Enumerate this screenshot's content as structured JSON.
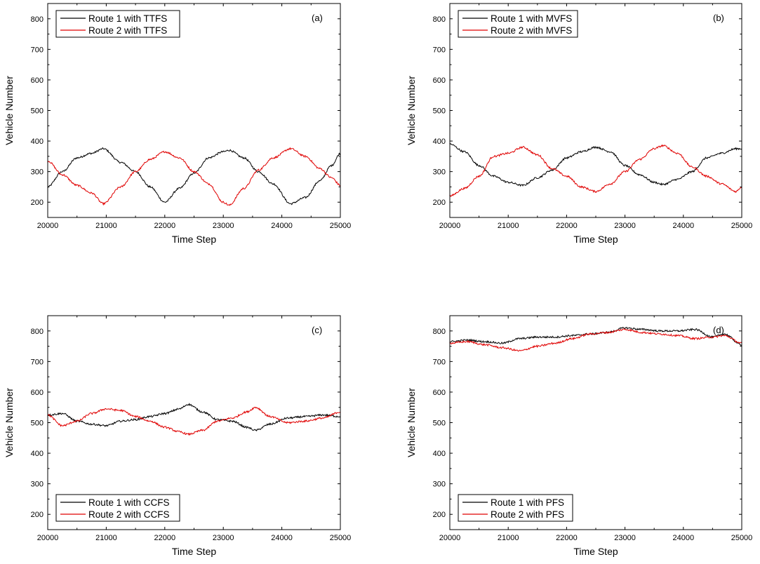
{
  "figure": {
    "background": "#ffffff",
    "series_colors": [
      "#000000",
      "#e00000"
    ]
  },
  "chart_data": [
    {
      "type": "line",
      "panel_label": "(a)",
      "xlabel": "Time Step",
      "ylabel": "Vehicle Number",
      "xlim": [
        20000,
        25000
      ],
      "ylim": [
        150,
        850
      ],
      "xticks": [
        20000,
        21000,
        22000,
        23000,
        24000,
        25000
      ],
      "yticks": [
        200,
        300,
        400,
        500,
        600,
        700,
        800
      ],
      "grid": false,
      "legend_position": "top-left",
      "x": [
        20000,
        20250,
        20500,
        20750,
        20950,
        21250,
        21500,
        21750,
        22000,
        22250,
        22500,
        22750,
        23000,
        23100,
        23350,
        23600,
        23850,
        24150,
        24400,
        24650,
        24850,
        25000
      ],
      "series": [
        {
          "name": "Route 1 with TTFS",
          "color": "#000000",
          "values": [
            250,
            300,
            345,
            360,
            375,
            330,
            300,
            250,
            200,
            245,
            295,
            345,
            365,
            370,
            345,
            300,
            260,
            195,
            215,
            270,
            320,
            360
          ]
        },
        {
          "name": "Route 2 with TTFS",
          "color": "#e00000",
          "values": [
            335,
            290,
            255,
            230,
            195,
            250,
            300,
            340,
            365,
            345,
            300,
            260,
            200,
            190,
            245,
            305,
            345,
            375,
            350,
            310,
            280,
            255
          ]
        }
      ]
    },
    {
      "type": "line",
      "panel_label": "(b)",
      "xlabel": "Time Step",
      "ylabel": "Vehicle Number",
      "xlim": [
        20000,
        25000
      ],
      "ylim": [
        150,
        850
      ],
      "xticks": [
        20000,
        21000,
        22000,
        23000,
        24000,
        25000
      ],
      "yticks": [
        200,
        300,
        400,
        500,
        600,
        700,
        800
      ],
      "grid": false,
      "legend_position": "top-left",
      "x": [
        20000,
        20250,
        20500,
        20750,
        21000,
        21250,
        21500,
        21750,
        22000,
        22250,
        22500,
        22750,
        23000,
        23250,
        23500,
        23650,
        23900,
        24150,
        24400,
        24650,
        24900,
        25000
      ],
      "series": [
        {
          "name": "Route 1 with MVFS",
          "color": "#000000",
          "values": [
            390,
            365,
            320,
            285,
            265,
            255,
            280,
            305,
            345,
            365,
            380,
            365,
            320,
            290,
            265,
            258,
            275,
            300,
            345,
            360,
            375,
            375
          ]
        },
        {
          "name": "Route 2 with MVFS",
          "color": "#e00000",
          "values": [
            220,
            245,
            285,
            350,
            360,
            380,
            355,
            310,
            285,
            250,
            235,
            260,
            300,
            340,
            375,
            385,
            360,
            315,
            285,
            260,
            235,
            250
          ]
        }
      ]
    },
    {
      "type": "line",
      "panel_label": "(c)",
      "xlabel": "Time Step",
      "ylabel": "Vehicle Number",
      "xlim": [
        20000,
        25000
      ],
      "ylim": [
        150,
        850
      ],
      "xticks": [
        20000,
        21000,
        22000,
        23000,
        24000,
        25000
      ],
      "yticks": [
        200,
        300,
        400,
        500,
        600,
        700,
        800
      ],
      "grid": false,
      "legend_position": "bottom-left",
      "x": [
        20000,
        20250,
        20500,
        20750,
        21000,
        21250,
        21500,
        21750,
        22000,
        22250,
        22400,
        22650,
        22900,
        23150,
        23400,
        23550,
        23800,
        24100,
        24400,
        24700,
        25000
      ],
      "series": [
        {
          "name": "Route 1 with CCFS",
          "color": "#000000",
          "values": [
            525,
            530,
            505,
            495,
            490,
            505,
            510,
            520,
            530,
            545,
            560,
            535,
            510,
            505,
            485,
            475,
            495,
            515,
            520,
            525,
            520
          ]
        },
        {
          "name": "Route 2 with CCFS",
          "color": "#e00000",
          "values": [
            525,
            490,
            505,
            530,
            545,
            540,
            520,
            505,
            485,
            470,
            462,
            475,
            505,
            515,
            535,
            550,
            520,
            500,
            505,
            515,
            535
          ]
        }
      ]
    },
    {
      "type": "line",
      "panel_label": "(d)",
      "xlabel": "Time Step",
      "ylabel": "Vehicle Number",
      "xlim": [
        20000,
        25000
      ],
      "ylim": [
        150,
        850
      ],
      "xticks": [
        20000,
        21000,
        22000,
        23000,
        24000,
        25000
      ],
      "yticks": [
        200,
        300,
        400,
        500,
        600,
        700,
        800
      ],
      "grid": false,
      "legend_position": "bottom-left",
      "x": [
        20000,
        20300,
        20600,
        20900,
        21200,
        21500,
        21800,
        22100,
        22400,
        22700,
        23000,
        23300,
        23600,
        23900,
        24200,
        24500,
        24700,
        25000
      ],
      "series": [
        {
          "name": "Route 1 with PFS",
          "color": "#000000",
          "values": [
            765,
            770,
            765,
            760,
            775,
            780,
            780,
            785,
            790,
            795,
            810,
            805,
            800,
            800,
            805,
            780,
            790,
            755
          ]
        },
        {
          "name": "Route 2 with PFS",
          "color": "#e00000",
          "values": [
            760,
            765,
            755,
            745,
            735,
            750,
            760,
            775,
            790,
            795,
            805,
            795,
            790,
            785,
            775,
            780,
            785,
            760
          ]
        }
      ]
    }
  ]
}
